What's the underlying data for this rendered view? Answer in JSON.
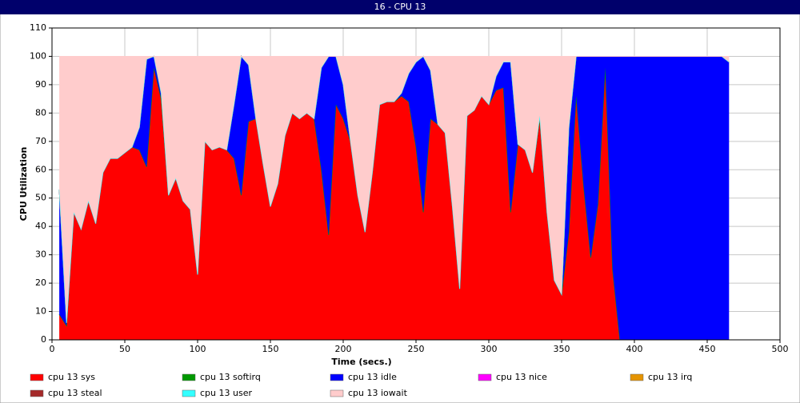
{
  "window_title": "16 - CPU 13",
  "chart_data": {
    "type": "stacked_area",
    "x_label": "Time (secs.)",
    "y_label": "CPU Utilization",
    "xlim": [
      0,
      500
    ],
    "xticks": [
      0,
      50,
      100,
      150,
      200,
      250,
      300,
      350,
      400,
      450,
      500
    ],
    "ylim": [
      0,
      110
    ],
    "yticks": [
      0,
      10,
      20,
      30,
      40,
      50,
      60,
      70,
      80,
      90,
      100,
      110
    ],
    "grid": true,
    "x": [
      5,
      10,
      15,
      20,
      25,
      30,
      35,
      40,
      45,
      50,
      55,
      60,
      65,
      70,
      75,
      80,
      85,
      90,
      95,
      100,
      105,
      110,
      115,
      120,
      125,
      130,
      135,
      140,
      145,
      150,
      155,
      160,
      165,
      170,
      175,
      180,
      185,
      190,
      195,
      200,
      205,
      210,
      215,
      220,
      225,
      230,
      235,
      240,
      245,
      250,
      255,
      260,
      265,
      270,
      275,
      280,
      285,
      290,
      295,
      300,
      305,
      310,
      315,
      320,
      325,
      330,
      335,
      340,
      345,
      350,
      355,
      360,
      365,
      370,
      375,
      380,
      385,
      390,
      395,
      400,
      405,
      410,
      415,
      420,
      425,
      430,
      435,
      440,
      445,
      450,
      455,
      460,
      465
    ],
    "series": [
      {
        "name": "cpu 13 sys",
        "color": "#ff0000",
        "values": [
          9,
          5,
          45,
          39,
          49,
          41,
          59,
          64,
          64,
          66,
          68,
          67,
          61,
          96,
          85,
          51,
          57,
          49,
          46,
          23,
          70,
          67,
          68,
          67,
          64,
          51,
          77,
          78,
          62,
          47,
          55,
          72,
          80,
          78,
          80,
          78,
          60,
          37,
          83,
          78,
          70,
          51,
          38,
          59,
          83,
          84,
          84,
          86,
          84,
          68,
          45,
          78,
          76,
          73,
          47,
          18,
          79,
          81,
          86,
          83,
          88,
          89,
          45,
          69,
          67,
          59,
          78,
          45,
          21,
          16,
          38,
          86,
          55,
          29,
          48,
          96,
          25,
          0,
          0,
          0,
          0,
          0,
          0,
          0,
          0,
          0,
          0,
          0,
          0,
          0,
          0,
          0,
          0
        ]
      },
      {
        "name": "cpu 13 softirq",
        "color": "#009900",
        "values": [
          0,
          0,
          0,
          0,
          0,
          0,
          0,
          0,
          0,
          0,
          0,
          0,
          0,
          0,
          0,
          0,
          0,
          0,
          0,
          0,
          0,
          0,
          0,
          0,
          0,
          0,
          0,
          0,
          0,
          0,
          0,
          0,
          0,
          0,
          0,
          0,
          0,
          0,
          0,
          0,
          0,
          0,
          0,
          0,
          0,
          0,
          0,
          0,
          0,
          0,
          0,
          0,
          0,
          0,
          0,
          0,
          0,
          0,
          0,
          0,
          0,
          0,
          0,
          0,
          0,
          0,
          0,
          0,
          0,
          0,
          0,
          0,
          0,
          0,
          0,
          0,
          0,
          0,
          0,
          0,
          0,
          0,
          0,
          0,
          0,
          0,
          0,
          0,
          0,
          0,
          0,
          0,
          0
        ]
      },
      {
        "name": "cpu 13 idle",
        "color": "#0000ff",
        "values": [
          44,
          1,
          0,
          0,
          0,
          0,
          0,
          0,
          0,
          0,
          0,
          8,
          38,
          4,
          2,
          0,
          0,
          0,
          0,
          0,
          0,
          0,
          0,
          0,
          19,
          49,
          20,
          0,
          0,
          0,
          0,
          0,
          0,
          0,
          0,
          0,
          36,
          63,
          17,
          12,
          0,
          0,
          0,
          0,
          0,
          0,
          0,
          1,
          10,
          30,
          55,
          17,
          0,
          0,
          0,
          0,
          0,
          0,
          0,
          0,
          5,
          9,
          53,
          0,
          0,
          0,
          1,
          0,
          0,
          0,
          37,
          14,
          45,
          71,
          52,
          4,
          75,
          100,
          100,
          100,
          100,
          100,
          100,
          100,
          100,
          100,
          100,
          100,
          100,
          100,
          100,
          100,
          98
        ]
      },
      {
        "name": "cpu 13 nice",
        "color": "#ff00ff",
        "values": [
          0,
          0,
          0,
          0,
          0,
          0,
          0,
          0,
          0,
          0,
          0,
          0,
          0,
          0,
          0,
          0,
          0,
          0,
          0,
          0,
          0,
          0,
          0,
          0,
          0,
          0,
          0,
          0,
          0,
          0,
          0,
          0,
          0,
          0,
          0,
          0,
          0,
          0,
          0,
          0,
          0,
          0,
          0,
          0,
          0,
          0,
          0,
          0,
          0,
          0,
          0,
          0,
          0,
          0,
          0,
          0,
          0,
          0,
          0,
          0,
          0,
          0,
          0,
          0,
          0,
          0,
          0,
          0,
          0,
          0,
          0,
          0,
          0,
          0,
          0,
          0,
          0,
          0,
          0,
          0,
          0,
          0,
          0,
          0,
          0,
          0,
          0,
          0,
          0,
          0,
          0,
          0,
          0
        ]
      },
      {
        "name": "cpu 13 irq",
        "color": "#e59400",
        "values": [
          0,
          0,
          0,
          0,
          0,
          0,
          0,
          0,
          0,
          0,
          0,
          0,
          0,
          0,
          0,
          0,
          0,
          0,
          0,
          0,
          0,
          0,
          0,
          0,
          0,
          0,
          0,
          0,
          0,
          0,
          0,
          0,
          0,
          0,
          0,
          0,
          0,
          0,
          0,
          0,
          0,
          0,
          0,
          0,
          0,
          0,
          0,
          0,
          0,
          0,
          0,
          0,
          0,
          0,
          0,
          0,
          0,
          0,
          0,
          0,
          0,
          0,
          0,
          0,
          0,
          0,
          0,
          0,
          0,
          0,
          0,
          0,
          0,
          0,
          0,
          0,
          0,
          0,
          0,
          0,
          0,
          0,
          0,
          0,
          0,
          0,
          0,
          0,
          0,
          0,
          0,
          0,
          0
        ]
      },
      {
        "name": "cpu 13 steal",
        "color": "#a52a2a",
        "values": [
          0,
          0,
          0,
          0,
          0,
          0,
          0,
          0,
          0,
          0,
          0,
          0,
          0,
          0,
          0,
          0,
          0,
          0,
          0,
          0,
          0,
          0,
          0,
          0,
          0,
          0,
          0,
          0,
          0,
          0,
          0,
          0,
          0,
          0,
          0,
          0,
          0,
          0,
          0,
          0,
          0,
          0,
          0,
          0,
          0,
          0,
          0,
          0,
          0,
          0,
          0,
          0,
          0,
          0,
          0,
          0,
          0,
          0,
          0,
          0,
          0,
          0,
          0,
          0,
          0,
          0,
          0,
          0,
          0,
          0,
          0,
          0,
          0,
          0,
          0,
          0,
          0,
          0,
          0,
          0,
          0,
          0,
          0,
          0,
          0,
          0,
          0,
          0,
          0,
          0,
          0,
          0,
          0
        ]
      },
      {
        "name": "cpu 13 user",
        "color": "#33ffff",
        "values": [
          0,
          0,
          0,
          0,
          0,
          0,
          0,
          0,
          0,
          0,
          0,
          0,
          0,
          0,
          0,
          0,
          0,
          0,
          0,
          0,
          0,
          0,
          0,
          0,
          0,
          0,
          0,
          0,
          0,
          0,
          0,
          0,
          0,
          0,
          0,
          0,
          0,
          0,
          0,
          0,
          0,
          0,
          0,
          0,
          0,
          0,
          0,
          0,
          0,
          0,
          0,
          0,
          0,
          0,
          0,
          0,
          0,
          0,
          0,
          0,
          0,
          0,
          0,
          0,
          0,
          0,
          0,
          0,
          0,
          0,
          0,
          0,
          0,
          0,
          0,
          0,
          0,
          0,
          0,
          0,
          0,
          0,
          0,
          0,
          0,
          0,
          0,
          0,
          0,
          0,
          0,
          0,
          0
        ]
      },
      {
        "name": "cpu 13 iowait",
        "color": "#ffcccc",
        "values": [
          47,
          94,
          55,
          61,
          51,
          59,
          41,
          36,
          36,
          34,
          32,
          25,
          1,
          0,
          13,
          49,
          43,
          51,
          54,
          77,
          30,
          33,
          32,
          33,
          17,
          0,
          3,
          22,
          38,
          53,
          45,
          28,
          20,
          22,
          20,
          22,
          4,
          0,
          0,
          10,
          30,
          49,
          62,
          41,
          17,
          16,
          16,
          13,
          6,
          2,
          0,
          5,
          24,
          27,
          53,
          82,
          21,
          19,
          14,
          17,
          7,
          2,
          2,
          31,
          33,
          41,
          21,
          55,
          79,
          84,
          25,
          0,
          0,
          0,
          0,
          0,
          0,
          0,
          0,
          0,
          0,
          0,
          0,
          0,
          0,
          0,
          0,
          0,
          0,
          0,
          0,
          0,
          2
        ]
      }
    ]
  }
}
